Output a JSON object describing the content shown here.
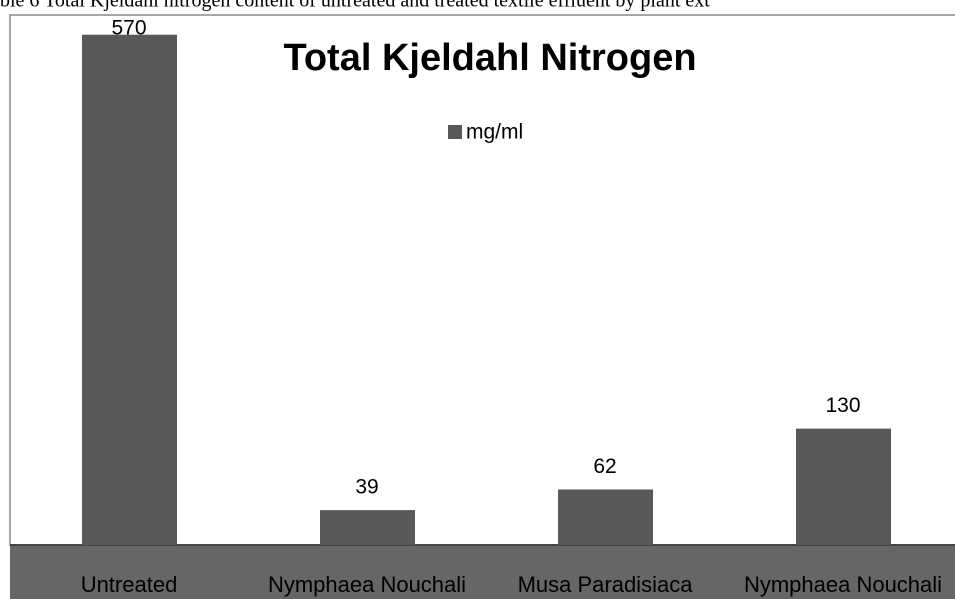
{
  "caption": "ble 6 Total Kjeldahl nitrogen content of untreated and treated textile effluent by plant ext",
  "chart_data": {
    "type": "bar",
    "title": "Total Kjeldahl Nitrogen",
    "categories": [
      "Untreated",
      "Nymphaea Nouchali",
      "Musa Paradisiaca",
      "Nymphaea Nouchali"
    ],
    "series": [
      {
        "name": "mg/ml",
        "color": "#595959",
        "values": [
          570,
          39,
          62,
          130
        ]
      }
    ],
    "ylim": [
      0,
      592
    ],
    "legend": "top"
  }
}
